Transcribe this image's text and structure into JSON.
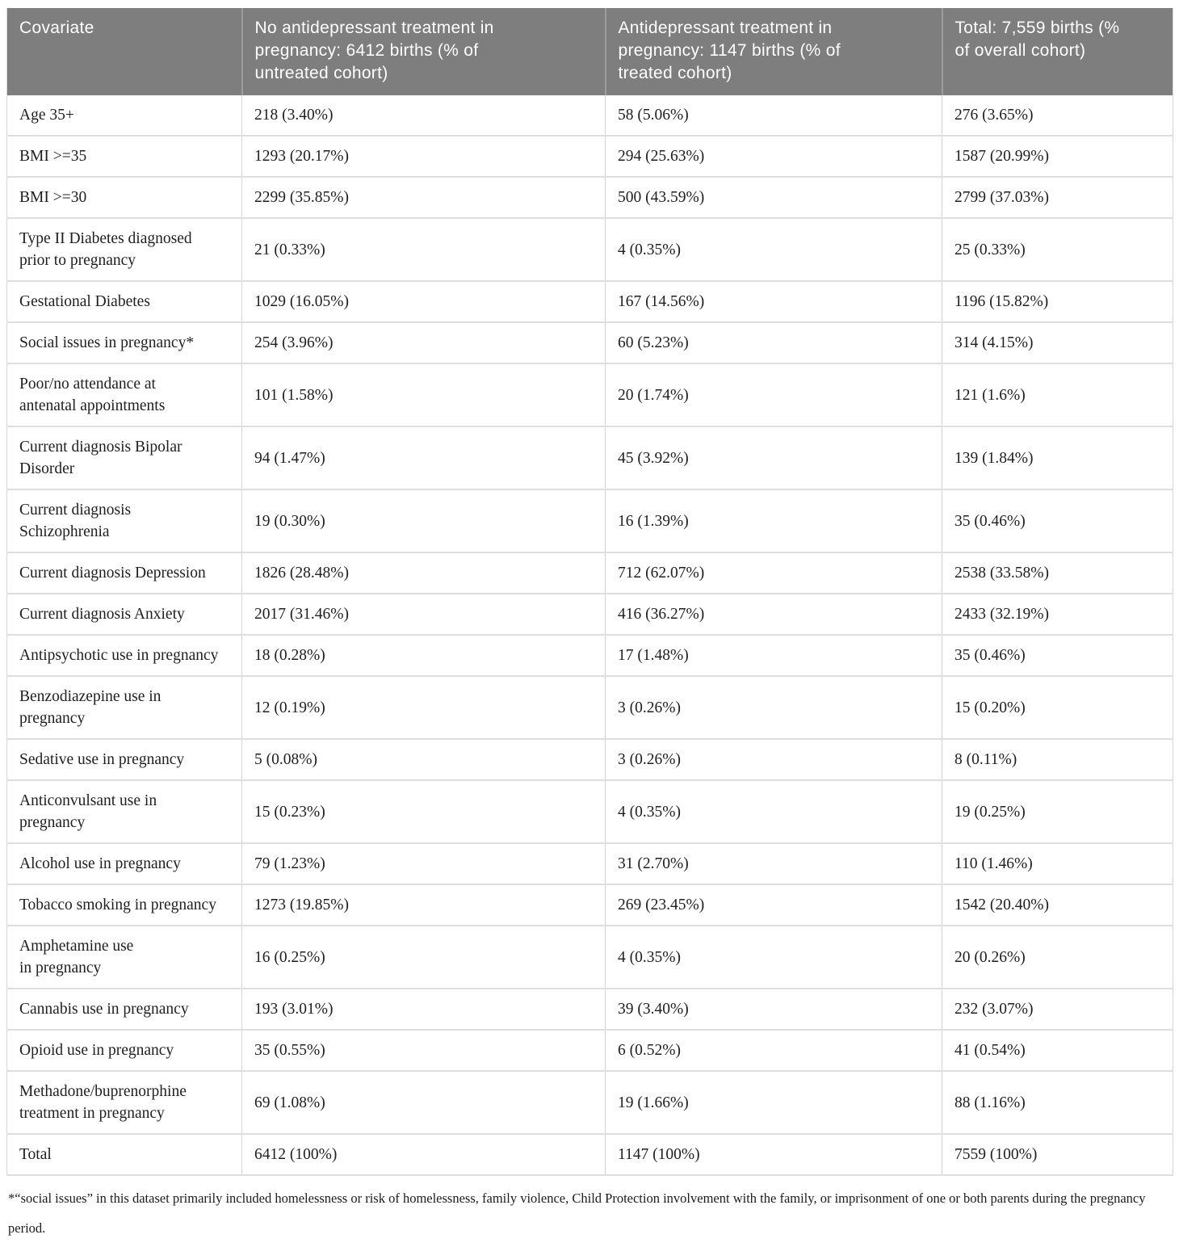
{
  "table": {
    "columns": [
      "Covariate",
      "No antidepressant treatment in\npregnancy: 6412 births (% of\nuntreated cohort)",
      "Antidepressant treatment in\npregnancy: 1147 births (% of\ntreated cohort)",
      "Total: 7,559 births (%\nof overall cohort)"
    ],
    "rows": [
      [
        "Age 35+",
        "218 (3.40%)",
        "58 (5.06%)",
        "276 (3.65%)"
      ],
      [
        "BMI >=35",
        "1293 (20.17%)",
        "294 (25.63%)",
        "1587 (20.99%)"
      ],
      [
        "BMI >=30",
        "2299 (35.85%)",
        "500 (43.59%)",
        "2799 (37.03%)"
      ],
      [
        "Type II Diabetes diagnosed\nprior to pregnancy",
        "21 (0.33%)",
        "4 (0.35%)",
        "25 (0.33%)"
      ],
      [
        "Gestational Diabetes",
        "1029 (16.05%)",
        "167 (14.56%)",
        "1196 (15.82%)"
      ],
      [
        "Social issues in pregnancy*",
        "254 (3.96%)",
        "60 (5.23%)",
        "314 (4.15%)"
      ],
      [
        "Poor/no attendance at\nantenatal appointments",
        "101 (1.58%)",
        "20 (1.74%)",
        "121 (1.6%)"
      ],
      [
        "Current diagnosis Bipolar\nDisorder",
        "94 (1.47%)",
        "45 (3.92%)",
        "139 (1.84%)"
      ],
      [
        "Current diagnosis\nSchizophrenia",
        "19 (0.30%)",
        "16 (1.39%)",
        "35 (0.46%)"
      ],
      [
        "Current diagnosis Depression",
        "1826 (28.48%)",
        "712 (62.07%)",
        "2538 (33.58%)"
      ],
      [
        "Current diagnosis Anxiety",
        "2017 (31.46%)",
        "416 (36.27%)",
        "2433 (32.19%)"
      ],
      [
        "Antipsychotic use in pregnancy",
        "18 (0.28%)",
        "17 (1.48%)",
        "35 (0.46%)"
      ],
      [
        "Benzodiazepine use in\npregnancy",
        "12 (0.19%)",
        "3 (0.26%)",
        "15 (0.20%)"
      ],
      [
        "Sedative use in pregnancy",
        "5 (0.08%)",
        "3 (0.26%)",
        "8 (0.11%)"
      ],
      [
        "Anticonvulsant use in\npregnancy",
        "15 (0.23%)",
        "4 (0.35%)",
        "19 (0.25%)"
      ],
      [
        "Alcohol use in pregnancy",
        "79 (1.23%)",
        "31 (2.70%)",
        "110 (1.46%)"
      ],
      [
        "Tobacco smoking in pregnancy",
        "1273 (19.85%)",
        "269 (23.45%)",
        "1542 (20.40%)"
      ],
      [
        "Amphetamine use\nin pregnancy",
        "16 (0.25%)",
        "4 (0.35%)",
        "20 (0.26%)"
      ],
      [
        "Cannabis use in pregnancy",
        "193 (3.01%)",
        "39 (3.40%)",
        "232 (3.07%)"
      ],
      [
        "Opioid use in pregnancy",
        "35 (0.55%)",
        "6 (0.52%)",
        "41 (0.54%)"
      ],
      [
        "Methadone/buprenorphine\ntreatment in pregnancy",
        "69 (1.08%)",
        "19 (1.66%)",
        "88 (1.16%)"
      ],
      [
        "Total",
        "6412 (100%)",
        "1147 (100%)",
        "7559 (100%)"
      ]
    ]
  },
  "footnote": "*“social issues” in this dataset primarily included homelessness or risk of homelessness, family violence, Child Protection involvement with the family, or imprisonment of one or both parents during the pregnancy period.",
  "colors": {
    "header_background": "#7e7e7e",
    "header_divider": "#9d9d9d",
    "header_text": "#ffffff",
    "body_text": "#1f1f1f",
    "row_border": "#dedede",
    "column_border": "#d6d6d6"
  }
}
